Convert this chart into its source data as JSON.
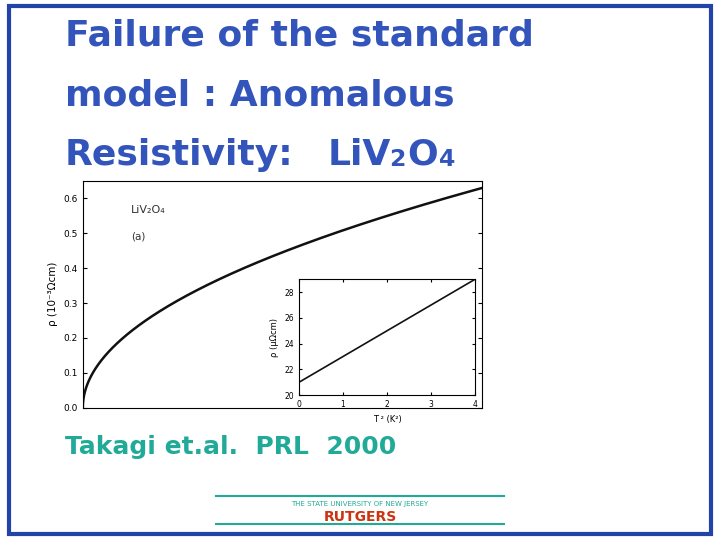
{
  "title_line1": "Failure of the standard",
  "title_line2": "model : Anomalous",
  "title_line3_normal": "Resistivity:",
  "title_color": "#3355bb",
  "background_color": "#ffffff",
  "slide_bg": "#ffffff",
  "border_color": "#2244aa",
  "footer_text": "THE STATE UNIVERSITY OF NEW JERSEY",
  "footer_bold": "RUTGERS",
  "footer_color": "#cc3311",
  "footer_line_color": "#22aa99",
  "takagi_text": "Takagi et.al.  PRL  2000",
  "takagi_color": "#22aa99",
  "main_plot": {
    "ylabel": "ρ (10⁻³Ωcm)",
    "ylim": [
      0.0,
      0.65
    ],
    "yticks": [
      0.0,
      0.1,
      0.2,
      0.3,
      0.4,
      0.5,
      0.6
    ],
    "label": "LiV₂O₄",
    "sublabel": "(a)",
    "curve_color": "#111111",
    "bg_color": "#ffffff"
  },
  "inset_plot": {
    "ylabel": "ρ (μΩcm)",
    "xlabel": "T ² (K²)",
    "ylim": [
      20,
      29
    ],
    "yticks": [
      20,
      22,
      24,
      26,
      28
    ],
    "xlim": [
      0,
      4
    ],
    "xticks": [
      0,
      1,
      2,
      3,
      4
    ],
    "curve_color": "#111111",
    "bg_color": "#ffffff"
  }
}
